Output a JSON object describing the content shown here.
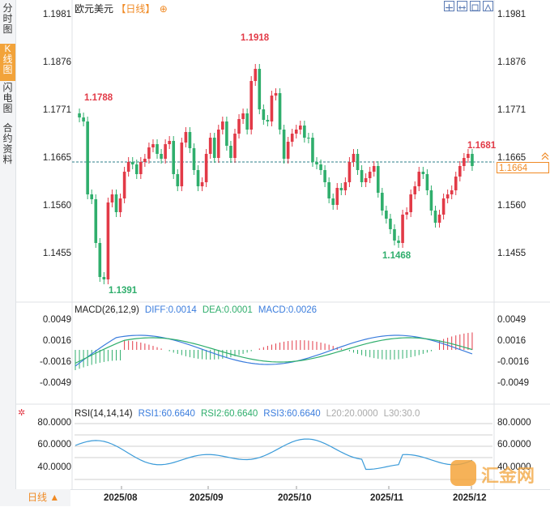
{
  "sidebar": {
    "tabs": [
      {
        "label": "分时图",
        "active": false
      },
      {
        "label": "K线图",
        "active": true
      },
      {
        "label": "闪电图",
        "active": false
      },
      {
        "label": "合约资料",
        "active": false
      }
    ]
  },
  "header": {
    "symbol": "欧元美元",
    "period": "【日线】",
    "add": "⊕"
  },
  "toolbar": {
    "icons": [
      "zoom-in-icon",
      "zoom-out-icon",
      "fit-icon",
      "fullscreen-icon"
    ]
  },
  "price_axis": {
    "labels": [
      "1.1981",
      "1.1876",
      "1.1771",
      "1.1665",
      "1.1560",
      "1.1455"
    ],
    "current_left": "1.1665",
    "current": "1.1664"
  },
  "peaks": {
    "high": "1.1918",
    "left_high": "1.1788",
    "low": "1.1391",
    "low2": "1.1468",
    "recent_high": "1.1681"
  },
  "macd": {
    "title": "MACD(26,12,9)",
    "diff": "DIFF:0.0014",
    "dea": "DEA:0.0001",
    "macd": "MACD:0.0026",
    "labels": [
      "0.0049",
      "0.0016",
      "-0.0016",
      "-0.0049"
    ]
  },
  "rsi": {
    "title": "RSI(14,14,14)",
    "rsi1": "RSI1:60.6640",
    "rsi2": "RSI2:60.6640",
    "rsi3": "RSI3:60.6640",
    "l20": "L20:20.0000",
    "l30": "L30:30.0",
    "labels_left": [
      "80.0000",
      "60.0000",
      "40.0000"
    ],
    "labels_right": [
      "80.0000",
      "60.0000",
      "40.0000"
    ]
  },
  "dates": [
    "2025/08",
    "2025/09",
    "2025/10",
    "2025/11",
    "2025/12"
  ],
  "period_button": {
    "label": "日线 ▲"
  },
  "watermark": {
    "text": "汇金网"
  },
  "colors": {
    "up": "#e23a47",
    "down": "#2fae6c",
    "accent": "#f08a24",
    "diff": "#3b7ddd",
    "dea": "#2fae6c"
  }
}
